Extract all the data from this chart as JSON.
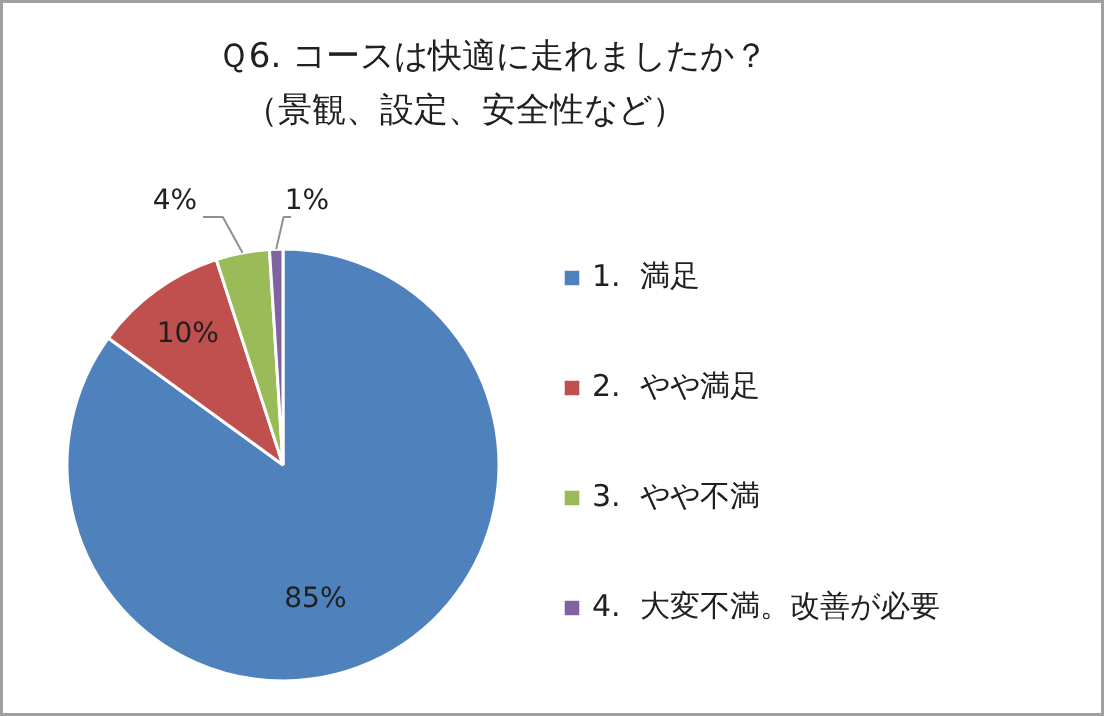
{
  "chart_data": {
    "type": "pie",
    "title": "Ｑ6.  コースは快適に走れましたか？",
    "subtitle": "（景観、設定、安全性など）",
    "categories": [
      "1.  満足",
      "2.  やや満足",
      "3.  やや不満",
      "4.  大変不満。改善が必要"
    ],
    "values": [
      85,
      10,
      4,
      1
    ],
    "colors": [
      "#4f81bd",
      "#c0504d",
      "#9bbb59",
      "#8064a2"
    ],
    "value_labels": [
      "85%",
      "10%",
      "4%",
      "1%"
    ],
    "legend": "right"
  }
}
